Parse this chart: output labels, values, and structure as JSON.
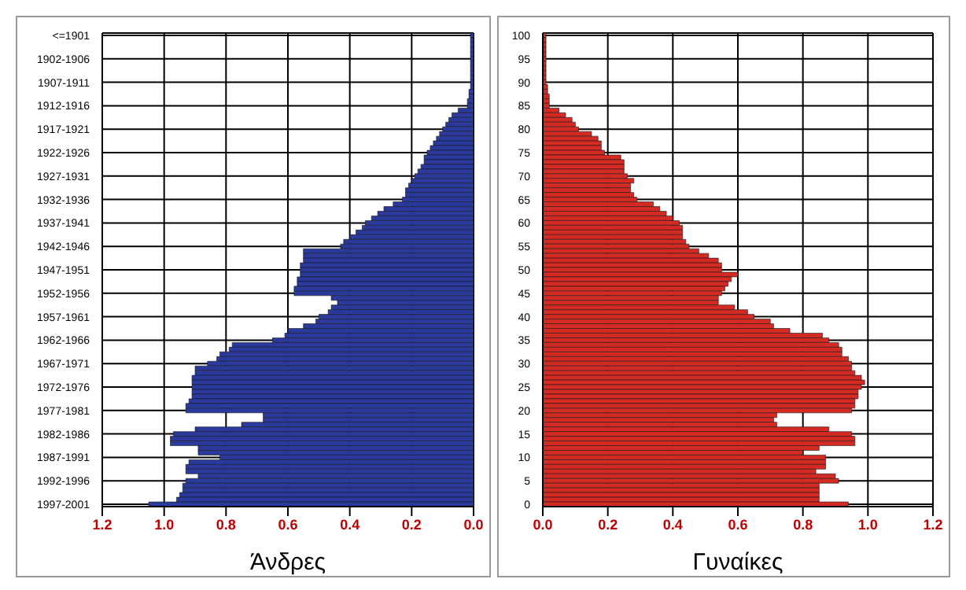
{
  "chart_data": [
    {
      "type": "bar",
      "orientation": "horizontal",
      "xlabel": "Άνδρες",
      "color": "#2a3a9c",
      "grid": true,
      "categories": [
        "<=1901",
        null,
        null,
        null,
        null,
        "1902-1906",
        null,
        null,
        null,
        null,
        "1907-1911",
        null,
        null,
        null,
        null,
        "1912-1916",
        null,
        null,
        null,
        null,
        "1917-1921",
        null,
        null,
        null,
        null,
        "1922-1926",
        null,
        null,
        null,
        null,
        "1927-1931",
        null,
        null,
        null,
        null,
        "1932-1936",
        null,
        null,
        null,
        null,
        "1937-1941",
        null,
        null,
        null,
        null,
        "1942-1946",
        null,
        null,
        null,
        null,
        "1947-1951",
        null,
        null,
        null,
        null,
        "1952-1956",
        null,
        null,
        null,
        null,
        "1957-1961",
        null,
        null,
        null,
        null,
        "1962-1966",
        null,
        null,
        null,
        null,
        "1967-1971",
        null,
        null,
        null,
        null,
        "1972-1976",
        null,
        null,
        null,
        null,
        "1977-1981",
        null,
        null,
        null,
        null,
        "1982-1986",
        null,
        null,
        null,
        null,
        "1987-1991",
        null,
        null,
        null,
        null,
        "1992-1996",
        null,
        null,
        null,
        null,
        "1997-2001"
      ],
      "values": [
        0.01,
        0.01,
        0.01,
        0.01,
        0.01,
        0.01,
        0.01,
        0.01,
        0.01,
        0.01,
        0.01,
        0.01,
        0.015,
        0.015,
        0.02,
        0.02,
        0.05,
        0.07,
        0.08,
        0.09,
        0.1,
        0.11,
        0.12,
        0.13,
        0.14,
        0.15,
        0.16,
        0.16,
        0.17,
        0.18,
        0.19,
        0.2,
        0.21,
        0.22,
        0.22,
        0.23,
        0.26,
        0.29,
        0.31,
        0.33,
        0.35,
        0.36,
        0.38,
        0.4,
        0.42,
        0.43,
        0.55,
        0.55,
        0.55,
        0.56,
        0.56,
        0.56,
        0.57,
        0.57,
        0.58,
        0.58,
        0.46,
        0.44,
        0.46,
        0.47,
        0.5,
        0.51,
        0.55,
        0.6,
        0.61,
        0.65,
        0.78,
        0.79,
        0.82,
        0.83,
        0.86,
        0.9,
        0.9,
        0.91,
        0.91,
        0.91,
        0.91,
        0.91,
        0.92,
        0.93,
        0.93,
        0.68,
        0.68,
        0.75,
        0.9,
        0.97,
        0.98,
        0.98,
        0.89,
        0.89,
        0.82,
        0.92,
        0.93,
        0.93,
        0.89,
        0.93,
        0.94,
        0.94,
        0.95,
        0.96,
        1.05
      ],
      "xlim": [
        1.2,
        0
      ],
      "xticks": [
        {
          "value": 1.2,
          "label": "1.2"
        },
        {
          "value": 1,
          "label": "1.0"
        },
        {
          "value": 0.8,
          "label": "0.8"
        },
        {
          "value": 0.6,
          "label": "0.6"
        },
        {
          "value": 0.4,
          "label": "0.4"
        },
        {
          "value": 0.2,
          "label": "0.2"
        },
        {
          "value": 0,
          "label": "0.0"
        }
      ]
    },
    {
      "type": "bar",
      "orientation": "horizontal",
      "xlabel": "Γυναίκες",
      "color": "#d42a24",
      "grid": true,
      "categories": [
        "100",
        null,
        null,
        null,
        null,
        "95",
        null,
        null,
        null,
        null,
        "90",
        null,
        null,
        null,
        null,
        "85",
        null,
        null,
        null,
        null,
        "80",
        null,
        null,
        null,
        null,
        "75",
        null,
        null,
        null,
        null,
        "70",
        null,
        null,
        null,
        null,
        "65",
        null,
        null,
        null,
        null,
        "60",
        null,
        null,
        null,
        null,
        "55",
        null,
        null,
        null,
        null,
        "50",
        null,
        null,
        null,
        null,
        "45",
        null,
        null,
        null,
        null,
        "40",
        null,
        null,
        null,
        null,
        "35",
        null,
        null,
        null,
        null,
        "30",
        null,
        null,
        null,
        null,
        "25",
        null,
        null,
        null,
        null,
        "20",
        null,
        null,
        null,
        null,
        "15",
        null,
        null,
        null,
        null,
        "10",
        null,
        null,
        null,
        null,
        "5",
        null,
        null,
        null,
        null,
        "0"
      ],
      "values": [
        0.01,
        0.01,
        0.01,
        0.01,
        0.01,
        0.01,
        0.01,
        0.01,
        0.01,
        0.01,
        0.01,
        0.015,
        0.015,
        0.02,
        0.02,
        0.02,
        0.05,
        0.07,
        0.09,
        0.1,
        0.11,
        0.15,
        0.17,
        0.18,
        0.18,
        0.19,
        0.24,
        0.25,
        0.25,
        0.25,
        0.26,
        0.28,
        0.27,
        0.27,
        0.28,
        0.29,
        0.34,
        0.36,
        0.38,
        0.4,
        0.42,
        0.43,
        0.43,
        0.43,
        0.44,
        0.45,
        0.48,
        0.51,
        0.54,
        0.55,
        0.55,
        0.6,
        0.58,
        0.57,
        0.56,
        0.55,
        0.54,
        0.54,
        0.59,
        0.63,
        0.65,
        0.7,
        0.71,
        0.76,
        0.86,
        0.88,
        0.91,
        0.92,
        0.92,
        0.94,
        0.95,
        0.95,
        0.96,
        0.98,
        0.99,
        0.98,
        0.97,
        0.97,
        0.96,
        0.96,
        0.95,
        0.72,
        0.71,
        0.72,
        0.88,
        0.95,
        0.96,
        0.96,
        0.85,
        0.8,
        0.87,
        0.87,
        0.87,
        0.84,
        0.9,
        0.91,
        0.85,
        0.85,
        0.85,
        0.85,
        0.94
      ],
      "xlim": [
        0,
        1.2
      ],
      "xticks": [
        {
          "value": 0,
          "label": "0.0"
        },
        {
          "value": 0.2,
          "label": "0.2"
        },
        {
          "value": 0.4,
          "label": "0.4"
        },
        {
          "value": 0.6,
          "label": "0.6"
        },
        {
          "value": 0.8,
          "label": "0.8"
        },
        {
          "value": 1,
          "label": "1.0"
        },
        {
          "value": 1.2,
          "label": "1.2"
        }
      ]
    }
  ]
}
